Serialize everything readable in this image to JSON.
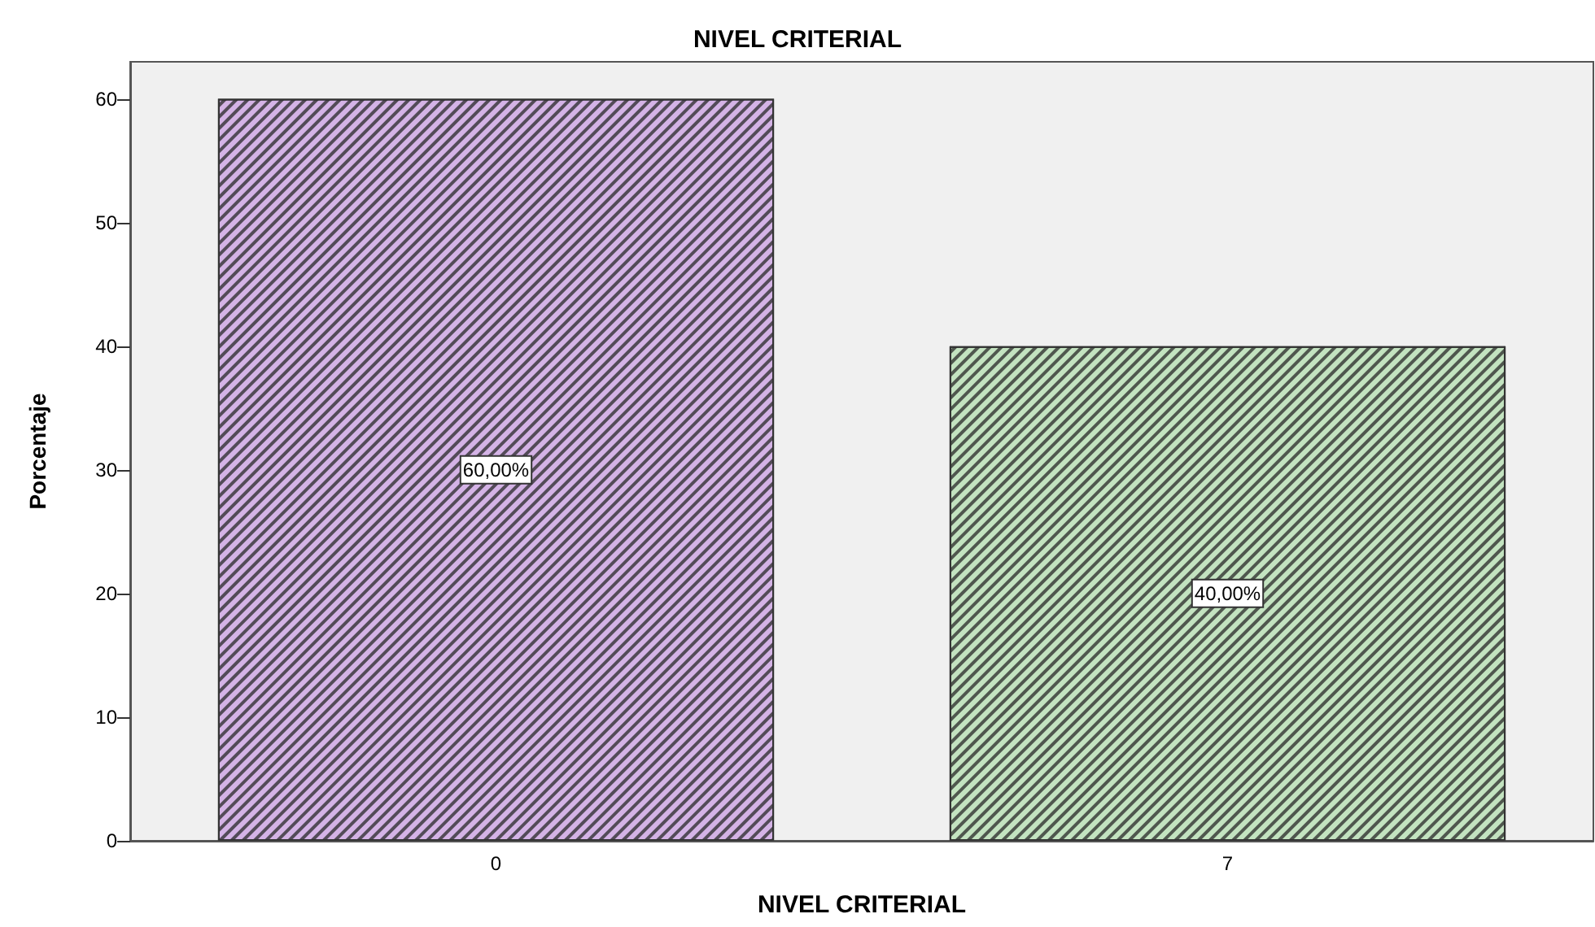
{
  "chart_data": {
    "type": "bar",
    "title": "NIVEL CRITERIAL",
    "xlabel": "NIVEL CRITERIAL",
    "ylabel": "Porcentaje",
    "categories": [
      "0",
      "7"
    ],
    "values": [
      60,
      40
    ],
    "colors": [
      "#d4b3e6",
      "#c3e3c0"
    ],
    "value_labels": [
      "60,00%",
      "40,00%"
    ],
    "ylim": [
      0,
      63
    ],
    "yticks": [
      0,
      10,
      20,
      30,
      40,
      50,
      60
    ],
    "grid": false
  }
}
